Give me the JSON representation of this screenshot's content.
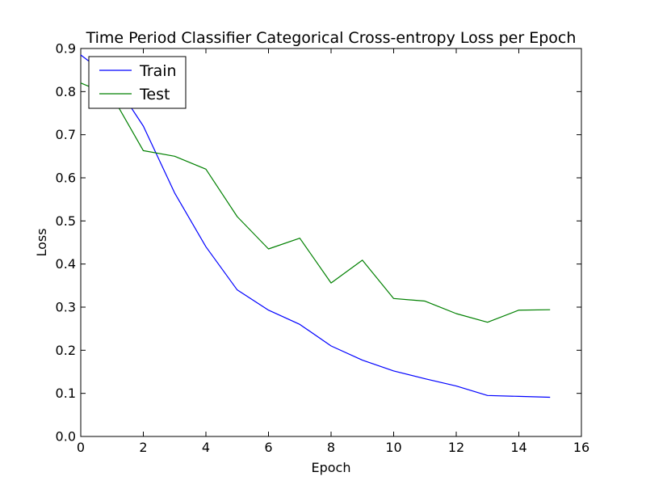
{
  "chart_data": {
    "type": "line",
    "title": "Time Period Classifier Categorical Cross-entropy Loss per Epoch",
    "xlabel": "Epoch",
    "ylabel": "Loss",
    "xlim": [
      0,
      16
    ],
    "ylim": [
      0.0,
      0.9
    ],
    "xticks": [
      "0",
      "2",
      "4",
      "6",
      "8",
      "10",
      "12",
      "14",
      "16"
    ],
    "yticks": [
      "0.0",
      "0.1",
      "0.2",
      "0.3",
      "0.4",
      "0.5",
      "0.6",
      "0.7",
      "0.8",
      "0.9"
    ],
    "legend_position": "top-left",
    "grid": false,
    "x": [
      0,
      1,
      2,
      3,
      4,
      5,
      6,
      7,
      8,
      9,
      10,
      11,
      12,
      13,
      14,
      15
    ],
    "series": [
      {
        "name": "Train",
        "color": "#0000ff",
        "values": [
          0.885,
          0.83,
          0.72,
          0.565,
          0.44,
          0.34,
          0.293,
          0.26,
          0.21,
          0.177,
          0.152,
          0.134,
          0.117,
          0.095,
          0.093,
          0.091
        ]
      },
      {
        "name": "Test",
        "color": "#008000",
        "values": [
          0.82,
          0.79,
          0.663,
          0.65,
          0.62,
          0.51,
          0.435,
          0.46,
          0.356,
          0.409,
          0.32,
          0.314,
          0.285,
          0.265,
          0.293,
          0.294
        ]
      }
    ]
  }
}
